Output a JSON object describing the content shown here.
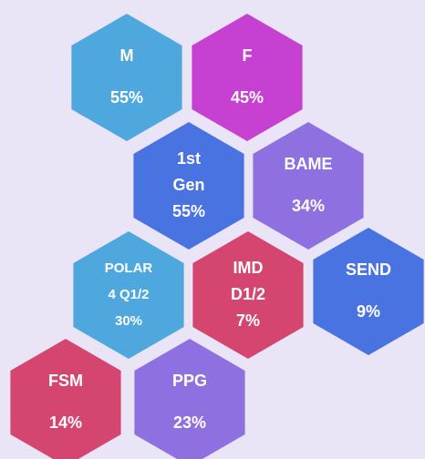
{
  "hexagons": [
    {
      "label": [
        "M"
      ],
      "value": "55%",
      "color": "#4fa8dd"
    },
    {
      "label": [
        "F"
      ],
      "value": "45%",
      "color": "#c640d2"
    },
    {
      "label": [
        "1st",
        "Gen"
      ],
      "value": "55%",
      "color": "#4a73e2"
    },
    {
      "label": [
        "BAME"
      ],
      "value": "34%",
      "color": "#8f70e0"
    },
    {
      "label": [
        "POLAR",
        "4 Q1/2"
      ],
      "value": "30%",
      "color": "#4fa8dd"
    },
    {
      "label": [
        "IMD",
        "D1/2"
      ],
      "value": "7%",
      "color": "#d4466f"
    },
    {
      "label": [
        "SEND"
      ],
      "value": "9%",
      "color": "#4a73e2"
    },
    {
      "label": [
        "FSM"
      ],
      "value": "14%",
      "color": "#d4466f"
    },
    {
      "label": [
        "PPG"
      ],
      "value": "23%",
      "color": "#8f70e0"
    }
  ]
}
